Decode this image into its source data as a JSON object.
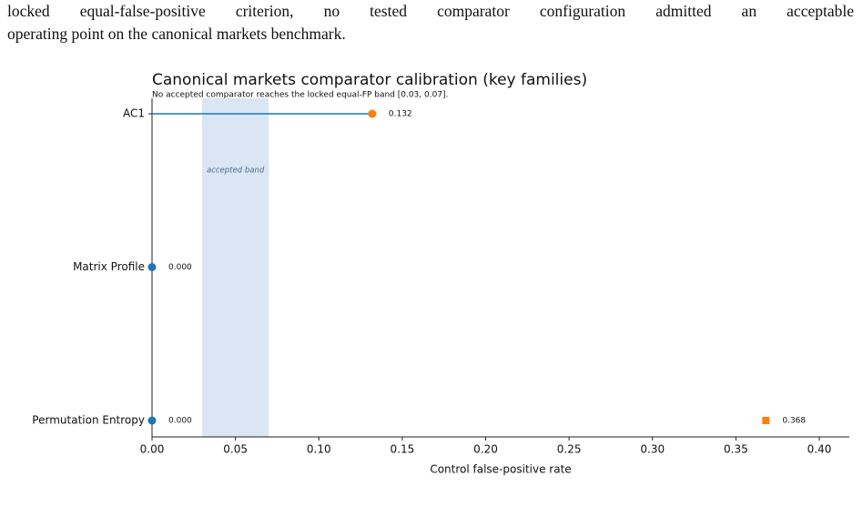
{
  "paragraph": {
    "lines": [
      "locked equal-false-positive criterion, no tested comparator configuration admitted an acceptable",
      "operating point on the canonical markets benchmark."
    ]
  },
  "chart_data": {
    "type": "dot",
    "title": "Canonical markets comparator calibration (key families)",
    "subtitle": "No accepted comparator reaches the locked equal-FP band [0.03, 0.07].",
    "xlabel": "Control false-positive rate",
    "categories": [
      "AC1",
      "Matrix Profile",
      "Permutation Entropy"
    ],
    "band": [
      0.03,
      0.07
    ],
    "band_label": "accepted band",
    "band_color": "#dae6f4",
    "series": [
      {
        "color": "#1f77b4",
        "markers": [
          null,
          "circle",
          "circle"
        ],
        "values": [
          null,
          0,
          0
        ],
        "value_labels": [
          null,
          "0.000",
          "0.000"
        ]
      },
      {
        "color": "#ff7f0e",
        "markers": [
          "circle",
          null,
          "square"
        ],
        "values": [
          0.132,
          null,
          0.368
        ],
        "value_labels": [
          "0.132",
          null,
          "0.368"
        ],
        "stems": [
          true,
          false,
          false
        ],
        "stem_color": "#1f77b4"
      }
    ],
    "xlim": [
      0,
      0.418
    ],
    "xticks": [
      {
        "value": 0,
        "label": "0.00"
      },
      {
        "value": 0.05,
        "label": "0.05"
      },
      {
        "value": 0.1,
        "label": "0.10"
      },
      {
        "value": 0.15,
        "label": "0.15"
      },
      {
        "value": 0.2,
        "label": "0.20"
      },
      {
        "value": 0.25,
        "label": "0.25"
      },
      {
        "value": 0.3,
        "label": "0.30"
      },
      {
        "value": 0.35,
        "label": "0.35"
      },
      {
        "value": 0.4,
        "label": "0.40"
      }
    ]
  }
}
